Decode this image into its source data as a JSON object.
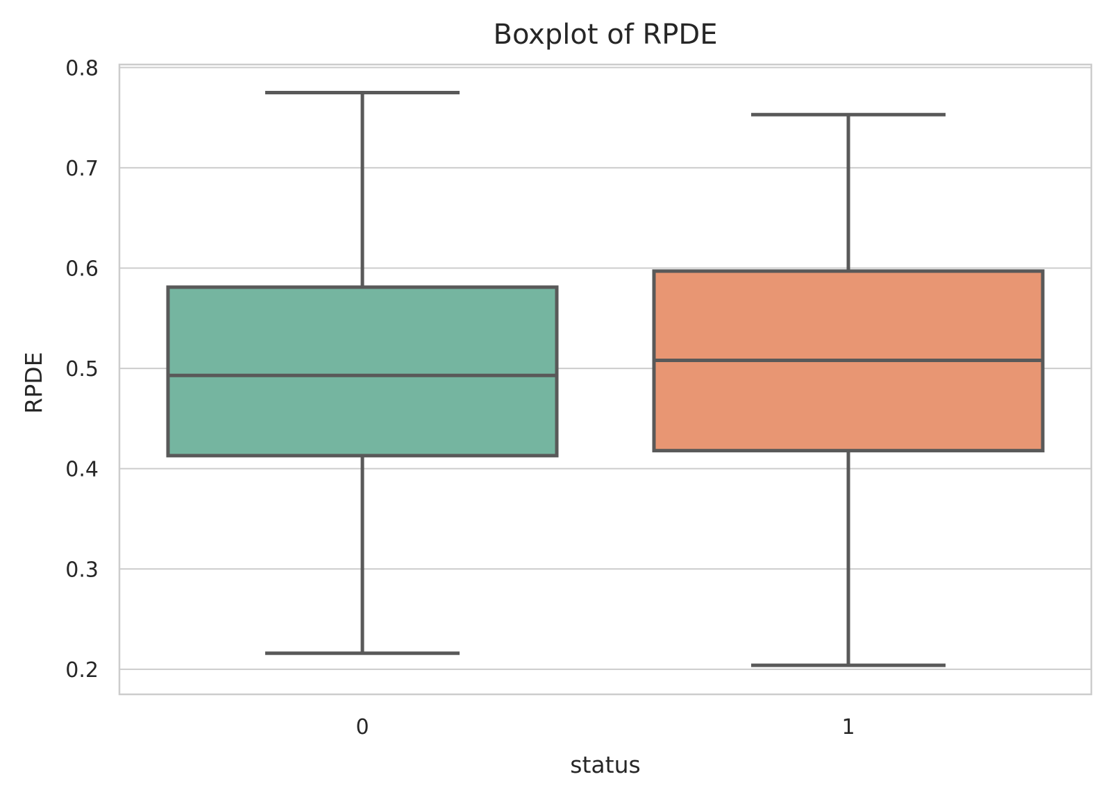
{
  "chart_data": {
    "type": "box",
    "title": "Boxplot of RPDE",
    "xlabel": "status",
    "ylabel": "RPDE",
    "ylim": [
      0.175,
      0.803
    ],
    "yticks": [
      "0.2",
      "0.3",
      "0.4",
      "0.5",
      "0.6",
      "0.7",
      "0.8"
    ],
    "ytick_values": [
      0.2,
      0.3,
      0.4,
      0.5,
      0.6,
      0.7,
      0.8
    ],
    "grid": true,
    "categories": [
      "0",
      "1"
    ],
    "boxes": [
      {
        "category": "0",
        "whisker_low": 0.216,
        "q1": 0.413,
        "median": 0.493,
        "q3": 0.581,
        "whisker_high": 0.775,
        "color": "#75b5a0"
      },
      {
        "category": "1",
        "whisker_low": 0.204,
        "q1": 0.418,
        "median": 0.508,
        "q3": 0.597,
        "whisker_high": 0.753,
        "color": "#e89673"
      }
    ],
    "line_color": "#595959"
  }
}
